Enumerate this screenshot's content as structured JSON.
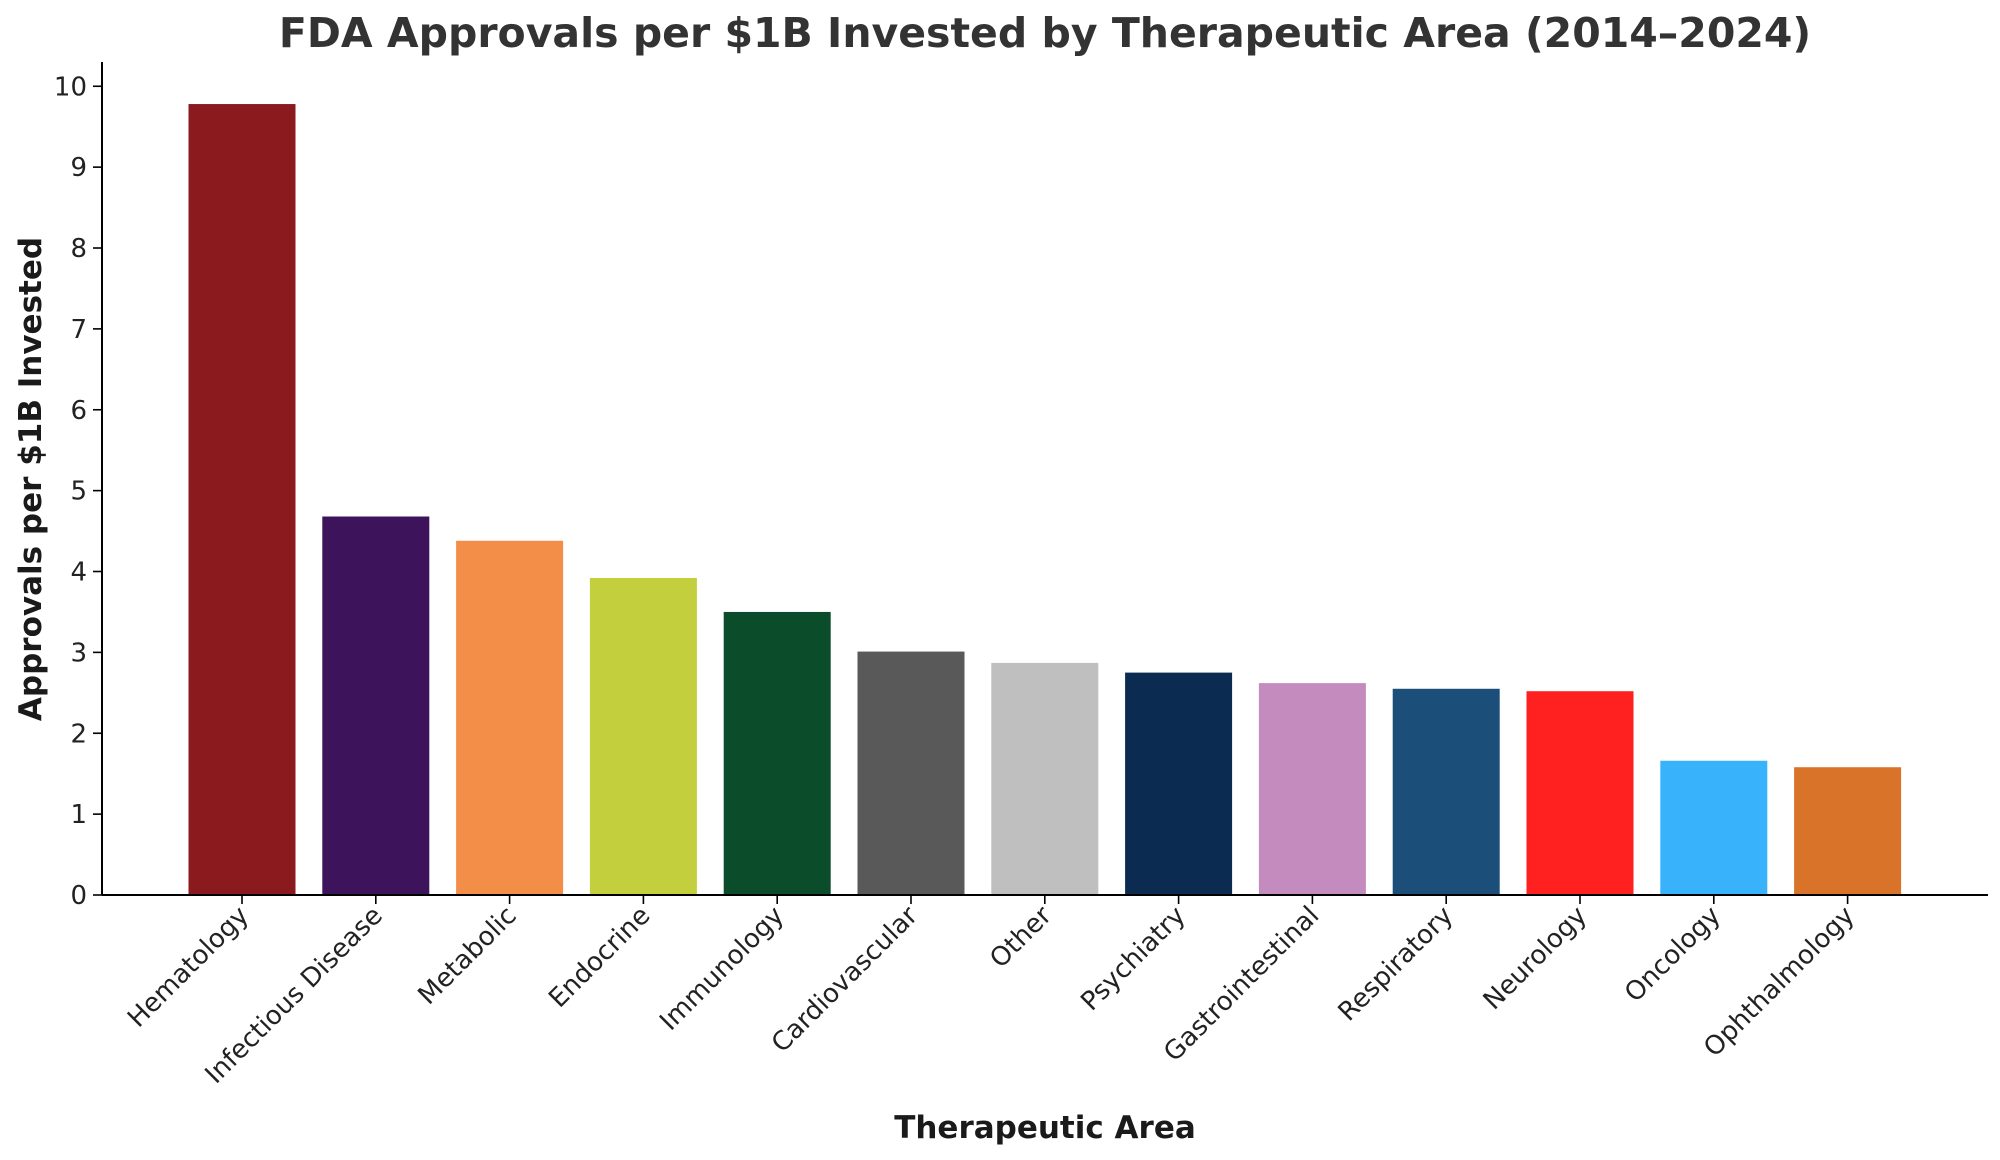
{
  "chart_data": {
    "type": "bar",
    "title": "FDA Approvals per $1B Invested by Therapeutic Area (2014–2024)",
    "xlabel": "Therapeutic Area",
    "ylabel": "Approvals per $1B Invested",
    "categories": [
      "Hematology",
      "Infectious Disease",
      "Metabolic",
      "Endocrine",
      "Immunology",
      "Cardiovascular",
      "Other",
      "Psychiatry",
      "Gastrointestinal",
      "Respiratory",
      "Neurology",
      "Oncology",
      "Ophthalmology"
    ],
    "values": [
      9.78,
      4.68,
      4.38,
      3.92,
      3.5,
      3.01,
      2.87,
      2.75,
      2.62,
      2.55,
      2.52,
      1.66,
      1.58
    ],
    "colors": [
      "#8B1A1E",
      "#3D135C",
      "#F28E47",
      "#C3CF3C",
      "#0B4C2B",
      "#595959",
      "#BFBFBF",
      "#0C2B50",
      "#C48BBF",
      "#1B4F7A",
      "#FF2020",
      "#38B3FB",
      "#D9732A"
    ],
    "ylim": [
      0,
      10.3
    ],
    "yticks": [
      0,
      1,
      2,
      3,
      4,
      5,
      6,
      7,
      8,
      9,
      10
    ],
    "grid": false,
    "legend": "none"
  }
}
